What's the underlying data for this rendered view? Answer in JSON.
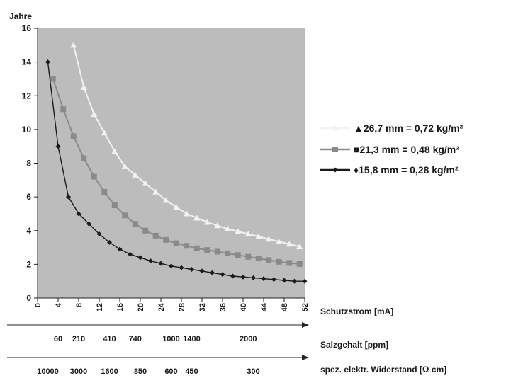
{
  "chart_data": {
    "type": "line",
    "ylabel": "Jahre",
    "ylim": [
      0,
      16
    ],
    "yticks": [
      0,
      2,
      4,
      6,
      8,
      10,
      12,
      14,
      16
    ],
    "xlim": [
      0,
      52
    ],
    "xticks": [
      0,
      4,
      8,
      12,
      16,
      20,
      24,
      28,
      32,
      36,
      40,
      44,
      48,
      52
    ],
    "xlabel": "Schutzstrom [mA]",
    "plot_background": "#bcbcbc",
    "grid": false,
    "legend_position": "right",
    "secondary_axes": [
      {
        "label": "Salzgehalt [ppm]",
        "ticks": [
          {
            "x": 4,
            "label": "60"
          },
          {
            "x": 8,
            "label": "210"
          },
          {
            "x": 14,
            "label": "410"
          },
          {
            "x": 19,
            "label": "740"
          },
          {
            "x": 26,
            "label": "1000"
          },
          {
            "x": 30,
            "label": "1400"
          },
          {
            "x": 41,
            "label": "2000"
          }
        ]
      },
      {
        "label": "spez. elektr. Widerstand [Ω cm]",
        "ticks": [
          {
            "x": 2,
            "label": "10000"
          },
          {
            "x": 8,
            "label": "3000"
          },
          {
            "x": 14,
            "label": "1600"
          },
          {
            "x": 20,
            "label": "850"
          },
          {
            "x": 26,
            "label": "600"
          },
          {
            "x": 30,
            "label": "450"
          },
          {
            "x": 42,
            "label": "300"
          }
        ]
      }
    ],
    "series": [
      {
        "name": "26,7 mm = 0,72 kg/m²",
        "marker": "triangle",
        "color": "#f2f2f2",
        "x": [
          7,
          9,
          11,
          13,
          15,
          17,
          19,
          21,
          23,
          25,
          27,
          29,
          31,
          33,
          35,
          37,
          39,
          41,
          43,
          45,
          47,
          49,
          51
        ],
        "y": [
          15.0,
          12.5,
          10.9,
          9.8,
          8.7,
          7.8,
          7.3,
          6.8,
          6.3,
          5.8,
          5.4,
          5.0,
          4.75,
          4.5,
          4.3,
          4.1,
          3.95,
          3.8,
          3.65,
          3.5,
          3.35,
          3.2,
          3.05
        ]
      },
      {
        "name": "21,3 mm = 0,48 kg/m²",
        "marker": "square",
        "color": "#8a8a8a",
        "x": [
          3,
          5,
          7,
          9,
          11,
          13,
          15,
          17,
          19,
          21,
          23,
          25,
          27,
          29,
          31,
          33,
          35,
          37,
          39,
          41,
          43,
          45,
          47,
          49,
          51
        ],
        "y": [
          13.0,
          11.2,
          9.6,
          8.3,
          7.2,
          6.3,
          5.5,
          4.9,
          4.4,
          4.0,
          3.7,
          3.45,
          3.25,
          3.1,
          2.95,
          2.85,
          2.75,
          2.65,
          2.55,
          2.45,
          2.35,
          2.25,
          2.15,
          2.08,
          2.02
        ]
      },
      {
        "name": "15,8 mm = 0,28 kg/m²",
        "marker": "diamond",
        "color": "#1a1a1a",
        "x": [
          2,
          4,
          6,
          8,
          10,
          12,
          14,
          16,
          18,
          20,
          22,
          24,
          26,
          28,
          30,
          32,
          34,
          36,
          38,
          40,
          42,
          44,
          46,
          48,
          50,
          52
        ],
        "y": [
          14.0,
          9.0,
          6.0,
          5.0,
          4.4,
          3.8,
          3.3,
          2.9,
          2.6,
          2.4,
          2.2,
          2.05,
          1.9,
          1.8,
          1.7,
          1.6,
          1.5,
          1.4,
          1.3,
          1.25,
          1.2,
          1.15,
          1.1,
          1.05,
          1.0,
          1.0
        ]
      }
    ]
  }
}
